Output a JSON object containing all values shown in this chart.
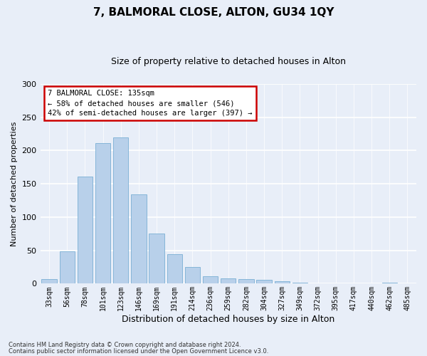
{
  "title": "7, BALMORAL CLOSE, ALTON, GU34 1QY",
  "subtitle": "Size of property relative to detached houses in Alton",
  "xlabel": "Distribution of detached houses by size in Alton",
  "ylabel": "Number of detached properties",
  "categories": [
    "33sqm",
    "56sqm",
    "78sqm",
    "101sqm",
    "123sqm",
    "146sqm",
    "169sqm",
    "191sqm",
    "214sqm",
    "236sqm",
    "259sqm",
    "282sqm",
    "304sqm",
    "327sqm",
    "349sqm",
    "372sqm",
    "395sqm",
    "417sqm",
    "440sqm",
    "462sqm",
    "485sqm"
  ],
  "values": [
    7,
    49,
    161,
    211,
    220,
    134,
    75,
    44,
    25,
    11,
    8,
    7,
    6,
    4,
    2,
    0,
    0,
    0,
    0,
    2,
    0
  ],
  "bar_color": "#b8d0ea",
  "bar_edge_color": "#7aafd4",
  "annotation_text": "7 BALMORAL CLOSE: 135sqm\n← 58% of detached houses are smaller (546)\n42% of semi-detached houses are larger (397) →",
  "annotation_box_color": "#ffffff",
  "annotation_box_edge": "#cc0000",
  "ylim": [
    0,
    300
  ],
  "yticks": [
    0,
    50,
    100,
    150,
    200,
    250,
    300
  ],
  "footer1": "Contains HM Land Registry data © Crown copyright and database right 2024.",
  "footer2": "Contains public sector information licensed under the Open Government Licence v3.0.",
  "bg_color": "#e8eef8",
  "plot_bg_color": "#e8eef8"
}
